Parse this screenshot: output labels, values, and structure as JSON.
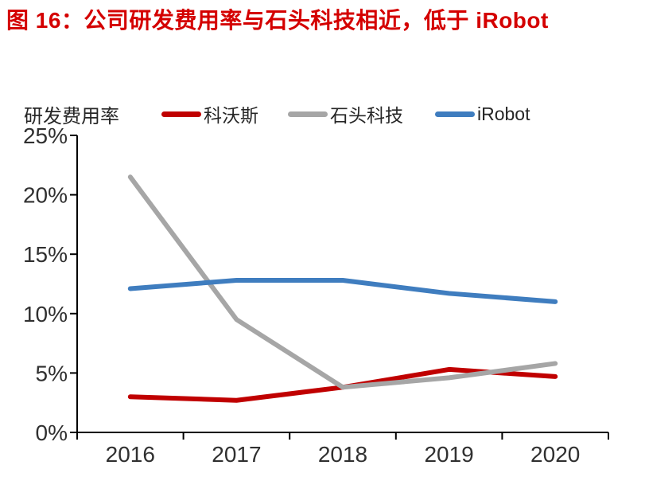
{
  "title": "图 16：公司研发费用率与石头科技相近，低于 iRobot",
  "colors": {
    "title": "#D40000",
    "axis": "#000000",
    "tick_text": "#303030",
    "background": "#FFFFFF"
  },
  "legend": {
    "items": [
      {
        "label": "科沃斯",
        "color": "#C00000"
      },
      {
        "label": "石头科技",
        "color": "#A6A6A6"
      },
      {
        "label": "iRobot",
        "color": "#3F7DBF"
      }
    ]
  },
  "chart_data": {
    "type": "line",
    "title": "图 16：公司研发费用率与石头科技相近，低于 iRobot",
    "ylabel": "研发费用率",
    "xlabel": "",
    "categories": [
      "2016",
      "2017",
      "2018",
      "2019",
      "2020"
    ],
    "series": [
      {
        "name": "科沃斯",
        "color": "#C00000",
        "values": [
          3.0,
          2.7,
          3.8,
          5.3,
          4.7
        ]
      },
      {
        "name": "石头科技",
        "color": "#A6A6A6",
        "values": [
          21.5,
          9.5,
          3.8,
          4.6,
          5.8
        ]
      },
      {
        "name": "iRobot",
        "color": "#3F7DBF",
        "values": [
          12.1,
          12.8,
          12.8,
          11.7,
          11.0
        ]
      }
    ],
    "ylim": [
      0,
      25
    ],
    "ytick_step": 5,
    "ytick_suffix": "%",
    "grid": false,
    "legend_position": "top"
  }
}
